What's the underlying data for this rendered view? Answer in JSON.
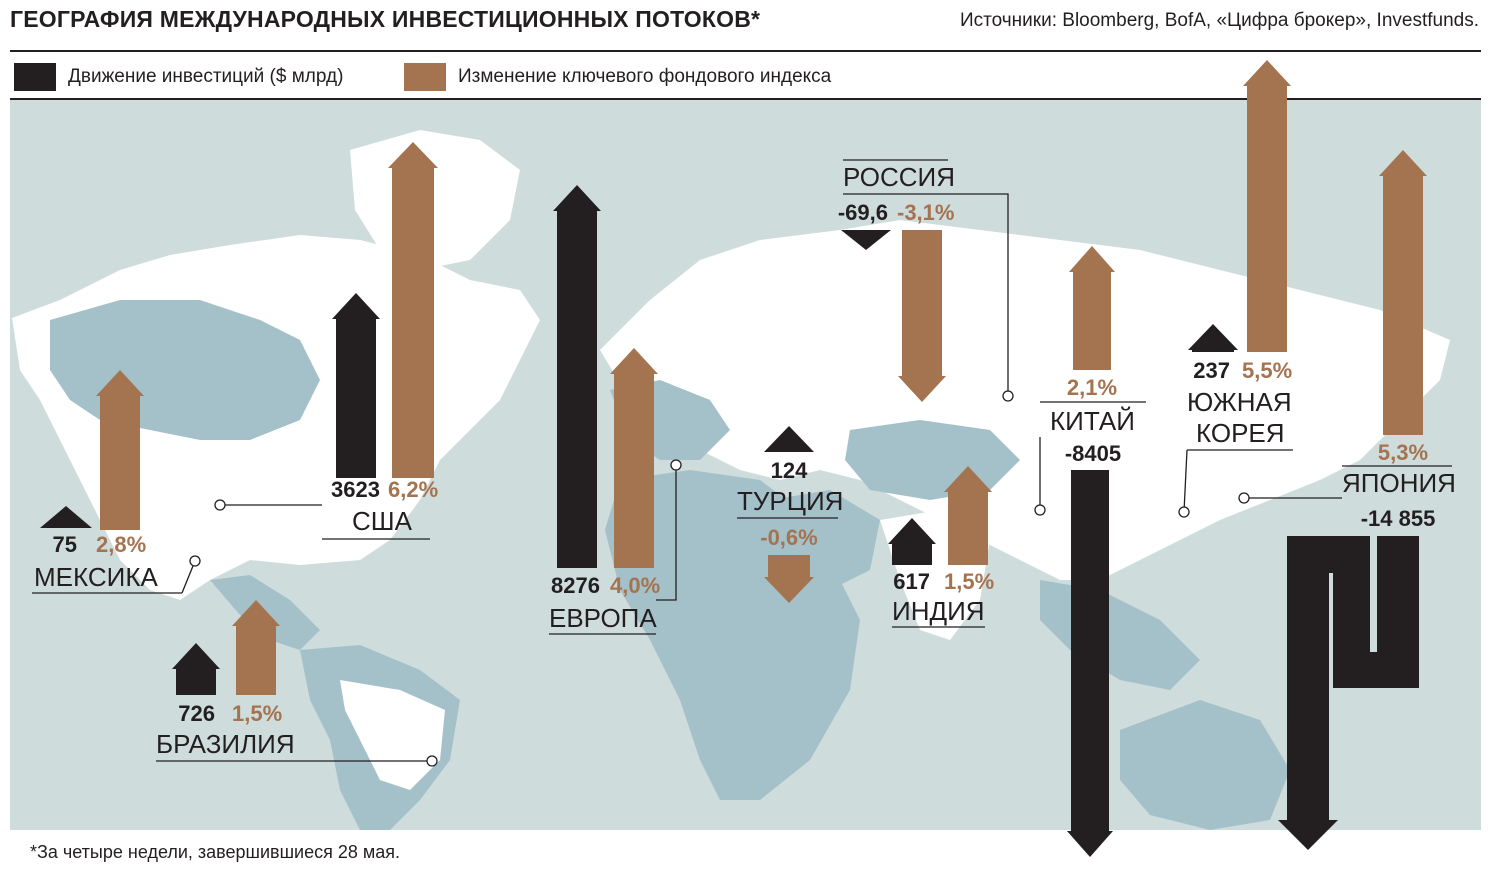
{
  "title": "ГЕОГРАФИЯ МЕЖДУНАРОДНЫХ ИНВЕСТИЦИОННЫХ ПОТОКОВ*",
  "source": "Источники: Bloomberg, BofA, «Цифра брокер», Investfunds.",
  "footnote": "*За четыре недели, завершившиеся 28 мая.",
  "colors": {
    "investment": "#231f20",
    "index": "#a47350",
    "map_sea": "#cfdcdc",
    "map_land": "#ffffff",
    "map_land_shade": "#a4c0c8"
  },
  "chart_data": {
    "type": "bar",
    "legend": [
      {
        "name": "Движение инвестиций  ($ млрд)",
        "color": "#231f20"
      },
      {
        "name": "Изменение ключевого фондового индекса",
        "color": "#a47350"
      }
    ],
    "regions": [
      {
        "key": "mexico",
        "name": "МЕКСИКА",
        "investment": 75,
        "investment_label": "75",
        "index_change": 2.8,
        "index_label": "2,8%"
      },
      {
        "key": "usa",
        "name": "США",
        "investment": 3623,
        "investment_label": "3623",
        "index_change": 6.2,
        "index_label": "6,2%"
      },
      {
        "key": "brazil",
        "name": "БРАЗИЛИЯ",
        "investment": 726,
        "investment_label": "726",
        "index_change": 1.5,
        "index_label": "1,5%"
      },
      {
        "key": "europe",
        "name": "ЕВРОПА",
        "investment": 8276,
        "investment_label": "8276",
        "index_change": 4.0,
        "index_label": "4,0%"
      },
      {
        "key": "turkey",
        "name": "ТУРЦИЯ",
        "investment": 124,
        "investment_label": "124",
        "index_change": -0.6,
        "index_label": "-0,6%"
      },
      {
        "key": "russia",
        "name": "РОССИЯ",
        "investment": -69.6,
        "investment_label": "-69,6",
        "index_change": -3.1,
        "index_label": "-3,1%"
      },
      {
        "key": "india",
        "name": "ИНДИЯ",
        "investment": 617,
        "investment_label": "617",
        "index_change": 1.5,
        "index_label": "1,5%"
      },
      {
        "key": "china",
        "name": "КИТАЙ",
        "investment": -8405,
        "investment_label": "-8405",
        "index_change": 2.1,
        "index_label": "2,1%"
      },
      {
        "key": "korea",
        "name": "ЮЖНАЯ КОРЕЯ",
        "investment": 237,
        "investment_label": "237",
        "index_change": 5.5,
        "index_label": "5,5%"
      },
      {
        "key": "japan",
        "name": "ЯПОНИЯ",
        "investment": -14855,
        "investment_label": "-14 855",
        "index_change": 5.3,
        "index_label": "5,3%"
      }
    ]
  }
}
